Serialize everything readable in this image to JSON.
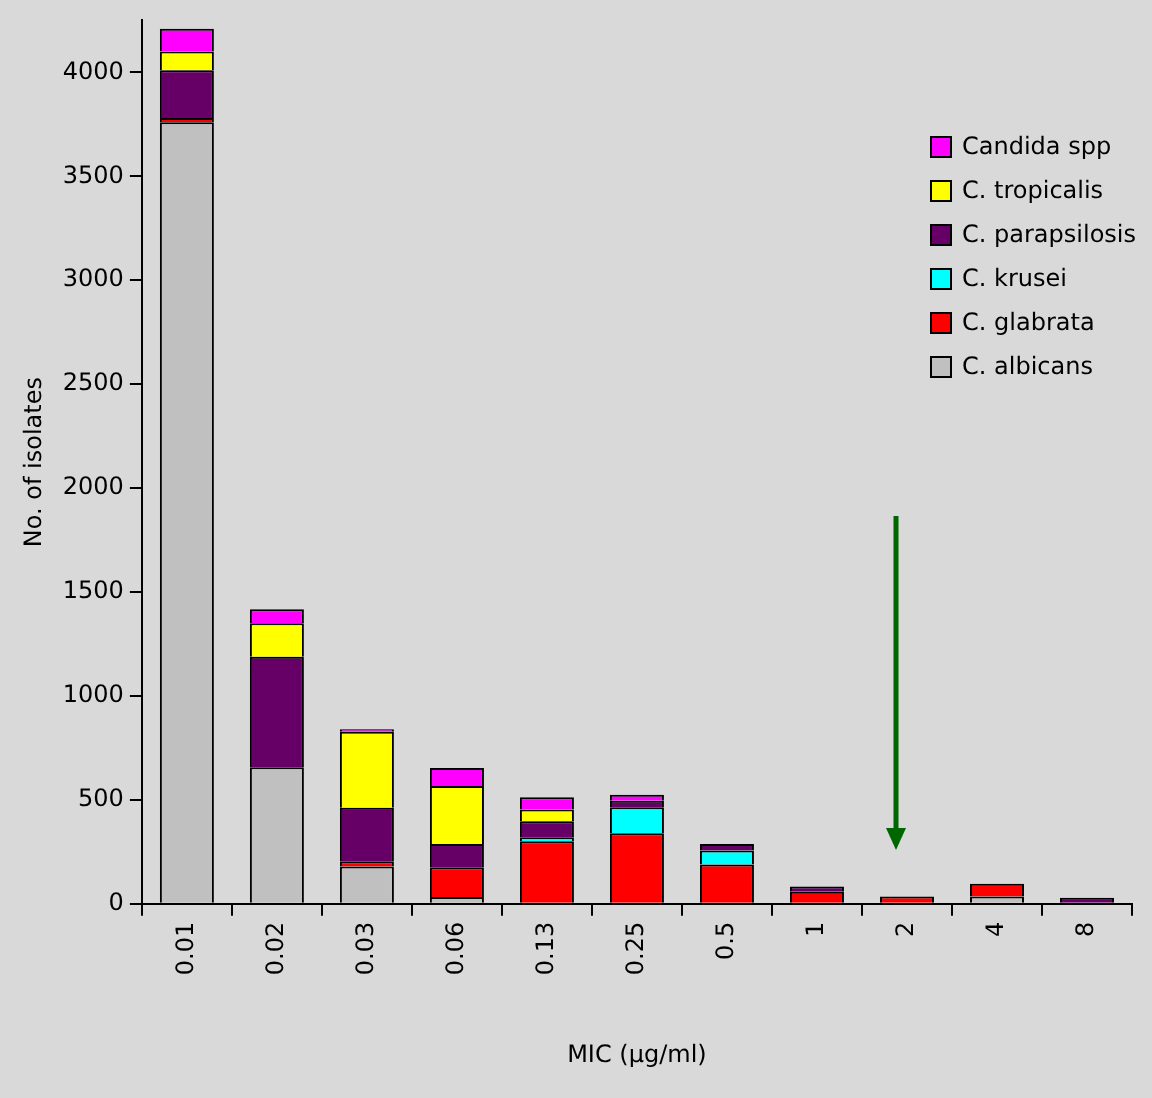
{
  "chart_data": {
    "type": "bar",
    "stacked": true,
    "xlabel": "MIC (µg/ml)",
    "ylabel": "No. of isolates",
    "categories": [
      "0.01",
      "0.02",
      "0.03",
      "0.06",
      "0.13",
      "0.25",
      "0.5",
      "1",
      "2",
      "4",
      "8"
    ],
    "series": [
      {
        "name": "C. albicans",
        "color": "#c0c0c0",
        "values": [
          3760,
          657,
          179,
          32,
          0,
          0,
          0,
          0,
          0,
          35,
          0
        ]
      },
      {
        "name": "C. glabrata",
        "color": "#ff0000",
        "values": [
          20,
          0,
          26,
          144,
          301,
          339,
          189,
          58,
          35,
          61,
          0
        ]
      },
      {
        "name": "C. krusei",
        "color": "#00ffff",
        "values": [
          0,
          0,
          0,
          0,
          19,
          125,
          67,
          0,
          0,
          0,
          0
        ]
      },
      {
        "name": "C. parapsilosis",
        "color": "#660066",
        "values": [
          230,
          532,
          257,
          112,
          77,
          32,
          32,
          25,
          0,
          0,
          29
        ]
      },
      {
        "name": "C. tropicalis",
        "color": "#ffff00",
        "values": [
          90,
          160,
          365,
          278,
          57,
          0,
          0,
          0,
          0,
          0,
          0
        ]
      },
      {
        "name": "Candida spp",
        "color": "#ff00ff",
        "values": [
          110,
          68,
          13,
          87,
          58,
          29,
          0,
          0,
          0,
          0,
          0
        ]
      }
    ],
    "ylim": [
      0,
      4250
    ],
    "yticks": [
      0,
      500,
      1000,
      1500,
      2000,
      2500,
      3000,
      3500,
      4000
    ],
    "grid": false,
    "legend": "top right"
  }
}
